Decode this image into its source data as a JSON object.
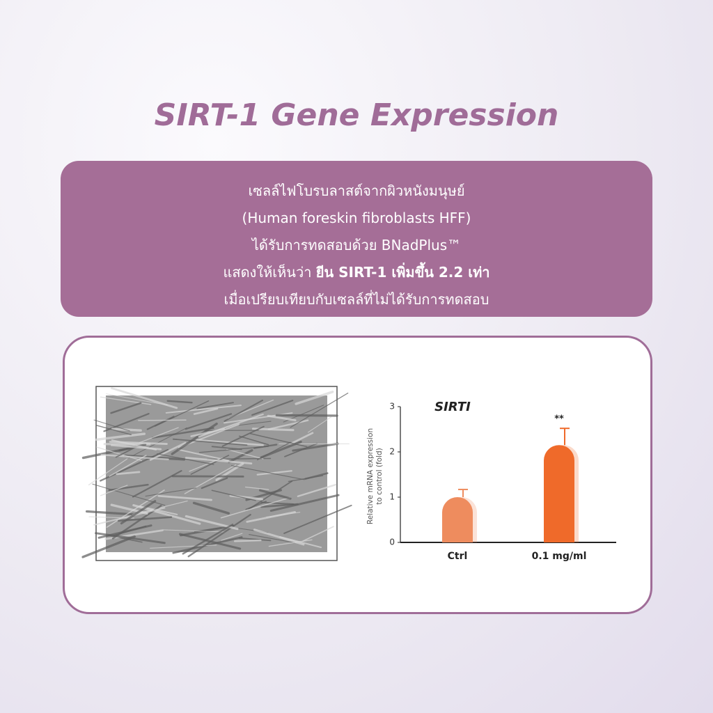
{
  "header": {
    "title": "SIRT-1 Gene Expression"
  },
  "description": {
    "lines": [
      "เซลล์ไฟโบรบลาสต์จากผิวหนังมนุษย์",
      "(Human foreskin fibroblasts HFF)",
      "ได้รับการทดสอบด้วย BNadPlus™",
      {
        "normal": "แสดงให้เห็นว่า",
        "bold": "ยีน SIRT-1 เพิ่มขึ้น 2.2 เท่า"
      },
      "เมื่อเปรียบเทียบกับเซลล์ที่ไม่ได้รับการทดสอบ"
    ]
  },
  "chart_data": {
    "type": "bar",
    "title": "SIRTI",
    "ylabel": [
      "Relative mRNA expression",
      "to control (fold)"
    ],
    "categories": [
      "Ctrl",
      "0.1 mg/ml"
    ],
    "values": [
      1.0,
      2.15
    ],
    "errors": [
      0.17,
      0.37
    ],
    "colors": [
      "#ee8c5e",
      "#ef6a2a"
    ],
    "annotations": [
      null,
      "**"
    ],
    "ylim": [
      0,
      3
    ],
    "yticks": [
      0,
      1,
      2,
      3
    ]
  }
}
